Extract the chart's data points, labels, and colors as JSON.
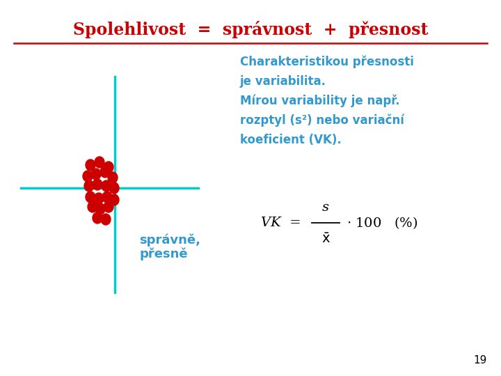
{
  "title": "Spolehlivost  =  správnost  +  přesnost",
  "title_color": "#cc0000",
  "title_fontsize": 17,
  "bg_color": "#ffffff",
  "crosshair_color": "#00cccc",
  "crosshair_lw": 2.5,
  "dot_color": "#cc0000",
  "label_spravne": "správně,",
  "label_presne": "přesně",
  "label_color": "#3399cc",
  "label_fontsize": 13,
  "desc_line1": "Charakteristikou přesnosti",
  "desc_line2": "je variabilita.",
  "desc_line3": "Mírou variability je např.",
  "desc_line4": "rozptyl (s²) nebo variační",
  "desc_line5": "koeficient (VK).",
  "desc_color": "#3399cc",
  "desc_fontsize": 12,
  "formula_color": "#000000",
  "formula_fontsize": 14,
  "page_num": "19",
  "page_num_color": "#000000",
  "page_num_fontsize": 11
}
